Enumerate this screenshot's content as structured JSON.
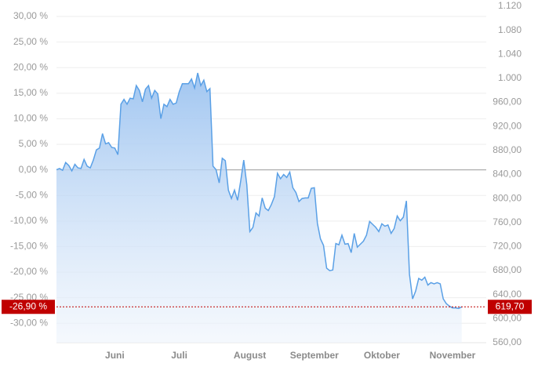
{
  "chart_data": {
    "type": "line",
    "xlim": [
      0,
      140
    ],
    "xticks": [
      {
        "value": 19,
        "label": "Juni"
      },
      {
        "value": 40,
        "label": "Juli"
      },
      {
        "value": 63,
        "label": "August"
      },
      {
        "value": 84,
        "label": "September"
      },
      {
        "value": 106,
        "label": "Oktober"
      },
      {
        "value": 129,
        "label": "November"
      }
    ],
    "ylim": [
      -33.8,
      32.0
    ],
    "yticks": [
      {
        "value": 30,
        "label": "30,00 %"
      },
      {
        "value": 25,
        "label": "25,00 %"
      },
      {
        "value": 20,
        "label": "20,00 %"
      },
      {
        "value": 15,
        "label": "15,00 %"
      },
      {
        "value": 10,
        "label": "10,00 %"
      },
      {
        "value": 5,
        "label": "5,00 %"
      },
      {
        "value": 0,
        "label": "0,00 %"
      },
      {
        "value": -5,
        "label": "-5,00 %"
      },
      {
        "value": -10,
        "label": "-10,00 %"
      },
      {
        "value": -15,
        "label": "-15,00 %"
      },
      {
        "value": -20,
        "label": "-20,00 %"
      },
      {
        "value": -25,
        "label": "-25,00 %"
      },
      {
        "value": -30,
        "label": "-30,00 %"
      }
    ],
    "y2lim": [
      560,
      1120
    ],
    "y2ticks": [
      {
        "value": 560,
        "label": "560,00"
      },
      {
        "value": 600,
        "label": "600,00"
      },
      {
        "value": 640,
        "label": "640,00"
      },
      {
        "value": 680,
        "label": "680,00"
      },
      {
        "value": 720,
        "label": "720,00"
      },
      {
        "value": 760,
        "label": "760,00"
      },
      {
        "value": 800,
        "label": "800,00"
      },
      {
        "value": 840,
        "label": "840,00"
      },
      {
        "value": 880,
        "label": "880,00"
      },
      {
        "value": 920,
        "label": "920,00"
      },
      {
        "value": 960,
        "label": "960,00"
      },
      {
        "value": 1000,
        "label": "1.000"
      },
      {
        "value": 1040,
        "label": "1.040"
      },
      {
        "value": 1080,
        "label": "1.080"
      },
      {
        "value": 1120,
        "label": "1.120"
      }
    ],
    "grid": true,
    "series": [
      {
        "color": "#5aa0e6",
        "axis": "y2",
        "values": [
          848,
          850,
          847,
          860,
          855,
          846,
          857,
          851,
          850,
          865,
          854,
          851,
          864,
          881,
          884,
          908,
          891,
          893,
          885,
          884,
          873,
          957,
          965,
          957,
          967,
          966,
          988,
          980,
          961,
          982,
          988,
          967,
          980,
          974,
          933,
          957,
          953,
          965,
          957,
          959,
          978,
          991,
          991,
          991,
          999,
          984,
          1009,
          988,
          997,
          978,
          983,
          854,
          848,
          826,
          867,
          863,
          814,
          800,
          814,
          797,
          829,
          864,
          823,
          745,
          752,
          776,
          771,
          801,
          784,
          780,
          790,
          803,
          842,
          833,
          840,
          835,
          844,
          818,
          810,
          795,
          800,
          801,
          801,
          817,
          818,
          759,
          733,
          722,
          684,
          680,
          681,
          725,
          723,
          739,
          724,
          725,
          710,
          742,
          719,
          724,
          729,
          739,
          762,
          757,
          752,
          745,
          758,
          754,
          756,
          742,
          750,
          771,
          763,
          769,
          796,
          674,
          633,
          646,
          667,
          664,
          669,
          656,
          660,
          658,
          660,
          658,
          633,
          625,
          621,
          618,
          618,
          617,
          619.7
        ]
      }
    ],
    "current": {
      "value": 619.7,
      "label": "619,70",
      "change": -26.9,
      "change_label": "-26,90 %",
      "color": "#c00000"
    }
  }
}
